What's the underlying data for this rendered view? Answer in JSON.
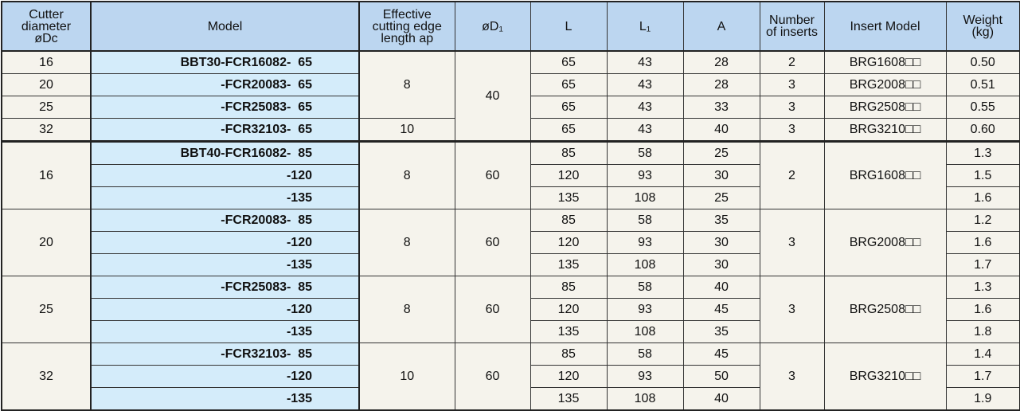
{
  "header": [
    "Cutter\ndiameter\nøDc",
    "Model",
    "Effective\ncutting edge\nlength ap",
    "øD₁",
    "L",
    "L₁",
    "A",
    "Number\nof inserts",
    "Insert Model",
    "Weight\n(kg)"
  ],
  "section1": {
    "d1": "40",
    "rows": [
      {
        "dc": "16",
        "model": "BBT30-FCR16082-  65",
        "ap": "8",
        "L": "65",
        "L1": "43",
        "A": "28",
        "n": "2",
        "insert": "BRG1608□□",
        "weight": "0.50"
      },
      {
        "dc": "20",
        "model": "-FCR20083-  65",
        "ap": "8",
        "L": "65",
        "L1": "43",
        "A": "28",
        "n": "3",
        "insert": "BRG2008□□",
        "weight": "0.51"
      },
      {
        "dc": "25",
        "model": "-FCR25083-  65",
        "ap": "8",
        "L": "65",
        "L1": "43",
        "A": "33",
        "n": "3",
        "insert": "BRG2508□□",
        "weight": "0.55"
      },
      {
        "dc": "32",
        "model": "-FCR32103-  65",
        "ap": "10",
        "L": "65",
        "L1": "43",
        "A": "40",
        "n": "3",
        "insert": "BRG3210□□",
        "weight": "0.60"
      }
    ]
  },
  "section2": [
    {
      "dc": "16",
      "ap": "8",
      "d1": "60",
      "n": "2",
      "insert": "BRG1608□□",
      "rows": [
        {
          "model": "BBT40-FCR16082-  85",
          "L": "85",
          "L1": "58",
          "A": "25",
          "weight": "1.3"
        },
        {
          "model": "-120",
          "L": "120",
          "L1": "93",
          "A": "30",
          "weight": "1.5"
        },
        {
          "model": "-135",
          "L": "135",
          "L1": "108",
          "A": "25",
          "weight": "1.6"
        }
      ]
    },
    {
      "dc": "20",
      "ap": "8",
      "d1": "60",
      "n": "3",
      "insert": "BRG2008□□",
      "rows": [
        {
          "model": "-FCR20083-  85",
          "L": "85",
          "L1": "58",
          "A": "35",
          "weight": "1.2"
        },
        {
          "model": "-120",
          "L": "120",
          "L1": "93",
          "A": "30",
          "weight": "1.6"
        },
        {
          "model": "-135",
          "L": "135",
          "L1": "108",
          "A": "30",
          "weight": "1.7"
        }
      ]
    },
    {
      "dc": "25",
      "ap": "8",
      "d1": "60",
      "n": "3",
      "insert": "BRG2508□□",
      "rows": [
        {
          "model": "-FCR25083-  85",
          "L": "85",
          "L1": "58",
          "A": "40",
          "weight": "1.3"
        },
        {
          "model": "-120",
          "L": "120",
          "L1": "93",
          "A": "45",
          "weight": "1.6"
        },
        {
          "model": "-135",
          "L": "135",
          "L1": "108",
          "A": "35",
          "weight": "1.8"
        }
      ]
    },
    {
      "dc": "32",
      "ap": "10",
      "d1": "60",
      "n": "3",
      "insert": "BRG3210□□",
      "rows": [
        {
          "model": "-FCR32103-  85",
          "L": "85",
          "L1": "58",
          "A": "45",
          "weight": "1.4"
        },
        {
          "model": "-120",
          "L": "120",
          "L1": "93",
          "A": "50",
          "weight": "1.7"
        },
        {
          "model": "-135",
          "L": "135",
          "L1": "108",
          "A": "40",
          "weight": "1.9"
        }
      ]
    }
  ],
  "colors": {
    "header_bg": "#bcd6f0",
    "model_bg": "#d4ecfa",
    "body_bg": "#f5f3ec"
  }
}
